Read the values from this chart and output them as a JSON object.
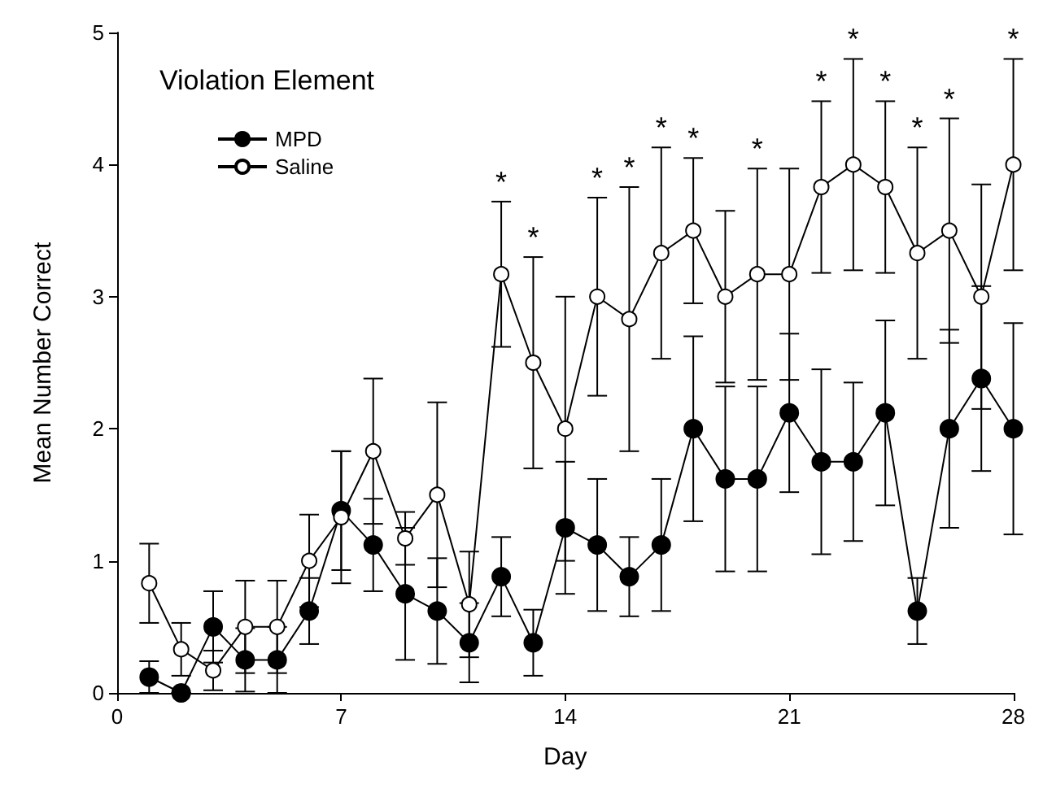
{
  "chart_data": {
    "type": "line",
    "xlabel": "Day",
    "ylabel": "Mean Number Correct",
    "legend_title": "Violation Element",
    "x": [
      1,
      2,
      3,
      4,
      5,
      6,
      7,
      8,
      9,
      10,
      11,
      12,
      13,
      14,
      15,
      16,
      17,
      18,
      19,
      20,
      21,
      22,
      23,
      24,
      25,
      26,
      27,
      28
    ],
    "series": [
      {
        "name": "MPD",
        "color": "#000000",
        "values": [
          0.12,
          0,
          0.5,
          0.25,
          0.25,
          0.62,
          1.38,
          1.12,
          0.75,
          0.62,
          0.38,
          0.88,
          0.38,
          1.25,
          1.12,
          0.88,
          1.12,
          2.0,
          1.62,
          1.62,
          2.12,
          1.75,
          1.75,
          2.12,
          0.62,
          2.0,
          2.38,
          2.0
        ],
        "errors": [
          0.12,
          0,
          0.27,
          0.24,
          0.25,
          0.25,
          0.45,
          0.35,
          0.5,
          0.4,
          0.3,
          0.3,
          0.25,
          0.5,
          0.5,
          0.3,
          0.5,
          0.7,
          0.7,
          0.7,
          0.6,
          0.7,
          0.6,
          0.7,
          0.25,
          0.75,
          0.7,
          0.8
        ]
      },
      {
        "name": "Saline",
        "color": "#ffffff",
        "values": [
          0.83,
          0.33,
          0.17,
          0.5,
          0.5,
          1.0,
          1.33,
          1.83,
          1.17,
          1.5,
          0.67,
          3.17,
          2.5,
          2.0,
          3.0,
          2.83,
          3.33,
          3.5,
          3.0,
          3.17,
          3.17,
          3.83,
          4.0,
          3.83,
          3.33,
          3.5,
          3.0,
          4.0
        ],
        "errors": [
          0.3,
          0.2,
          0.15,
          0.35,
          0.35,
          0.35,
          0.5,
          0.55,
          0.2,
          0.7,
          0.4,
          0.55,
          0.8,
          1.0,
          0.75,
          1.0,
          0.8,
          0.55,
          0.65,
          0.8,
          0.8,
          0.65,
          0.8,
          0.65,
          0.8,
          0.85,
          0.85,
          0.8
        ]
      }
    ],
    "annotations": [
      {
        "text": "*",
        "x": 12,
        "y": 3.72
      },
      {
        "text": "*",
        "x": 13,
        "y": 3.3
      },
      {
        "text": "*",
        "x": 15,
        "y": 3.75
      },
      {
        "text": "*",
        "x": 16,
        "y": 3.83
      },
      {
        "text": "*",
        "x": 17,
        "y": 4.13
      },
      {
        "text": "*",
        "x": 18,
        "y": 4.05
      },
      {
        "text": "*",
        "x": 20,
        "y": 3.97
      },
      {
        "text": "*",
        "x": 22,
        "y": 4.48
      },
      {
        "text": "*",
        "x": 23,
        "y": 4.8
      },
      {
        "text": "*",
        "x": 24,
        "y": 4.48
      },
      {
        "text": "*",
        "x": 25,
        "y": 4.13
      },
      {
        "text": "*",
        "x": 26,
        "y": 4.35
      },
      {
        "text": "*",
        "x": 28,
        "y": 4.8
      }
    ],
    "xlim": [
      0,
      28
    ],
    "xticks": [
      0,
      7,
      14,
      21,
      28
    ],
    "ylim": [
      0,
      5
    ],
    "yticks": [
      0,
      1,
      2,
      3,
      4,
      5
    ],
    "grid": false,
    "legend": "top left",
    "marker": "circle",
    "line_style": "solid"
  }
}
